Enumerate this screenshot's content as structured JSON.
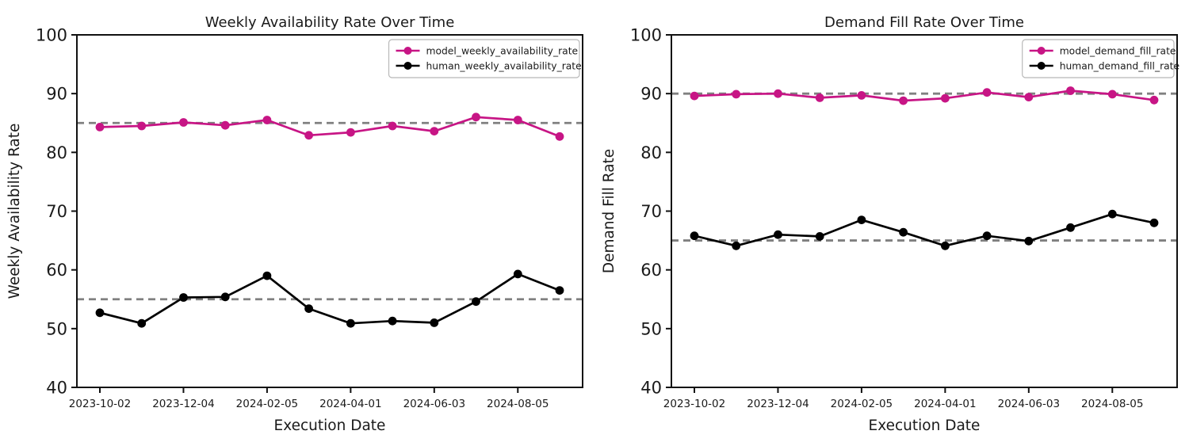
{
  "figure": {
    "background": "#ffffff",
    "text_color": "#1a1a1a"
  },
  "chart_data": [
    {
      "type": "line",
      "title": "Weekly Availability Rate Over Time",
      "xlabel": "Execution Date",
      "ylabel": "Weekly Availability Rate",
      "ylim": [
        40,
        100
      ],
      "yticks": [
        40,
        50,
        60,
        70,
        80,
        90,
        100
      ],
      "n_points": 12,
      "x_tick_labels": [
        "2023-10-02",
        "2023-12-04",
        "2024-02-05",
        "2024-04-01",
        "2024-06-03",
        "2024-08-05"
      ],
      "x_tick_indices": [
        0,
        2,
        4,
        6,
        8,
        10
      ],
      "grid": false,
      "legend_position": "upper right",
      "baseline_style": {
        "color": "#808080",
        "dash": "9 6",
        "width": 2.8
      },
      "series": [
        {
          "name": "model_weekly_availability_rate",
          "color": "#C71585",
          "marker": "circle",
          "baseline": 85,
          "values": [
            84.3,
            84.5,
            85.1,
            84.6,
            85.5,
            82.9,
            83.4,
            84.5,
            83.6,
            86.0,
            85.5,
            82.7
          ]
        },
        {
          "name": "human_weekly_availability_rate",
          "color": "#000000",
          "marker": "circle",
          "baseline": 55,
          "values": [
            52.7,
            50.9,
            55.3,
            55.4,
            59.0,
            53.4,
            50.9,
            51.3,
            51.0,
            54.6,
            59.3,
            56.5
          ]
        }
      ]
    },
    {
      "type": "line",
      "title": "Demand Fill Rate Over Time",
      "xlabel": "Execution Date",
      "ylabel": "Demand Fill Rate",
      "ylim": [
        40,
        100
      ],
      "yticks": [
        40,
        50,
        60,
        70,
        80,
        90,
        100
      ],
      "n_points": 12,
      "x_tick_labels": [
        "2023-10-02",
        "2023-12-04",
        "2024-02-05",
        "2024-04-01",
        "2024-06-03",
        "2024-08-05"
      ],
      "x_tick_indices": [
        0,
        2,
        4,
        6,
        8,
        10
      ],
      "grid": false,
      "legend_position": "upper right",
      "baseline_style": {
        "color": "#808080",
        "dash": "9 6",
        "width": 2.8
      },
      "series": [
        {
          "name": "model_demand_fill_rate",
          "color": "#C71585",
          "marker": "circle",
          "baseline": 90,
          "values": [
            89.6,
            89.9,
            90.0,
            89.3,
            89.7,
            88.8,
            89.2,
            90.2,
            89.4,
            90.5,
            89.9,
            88.9
          ]
        },
        {
          "name": "human_demand_fill_rate",
          "color": "#000000",
          "marker": "circle",
          "baseline": 65,
          "values": [
            65.8,
            64.1,
            66.0,
            65.7,
            68.5,
            66.4,
            64.1,
            65.8,
            64.9,
            67.2,
            69.5,
            68.0
          ]
        }
      ]
    }
  ]
}
